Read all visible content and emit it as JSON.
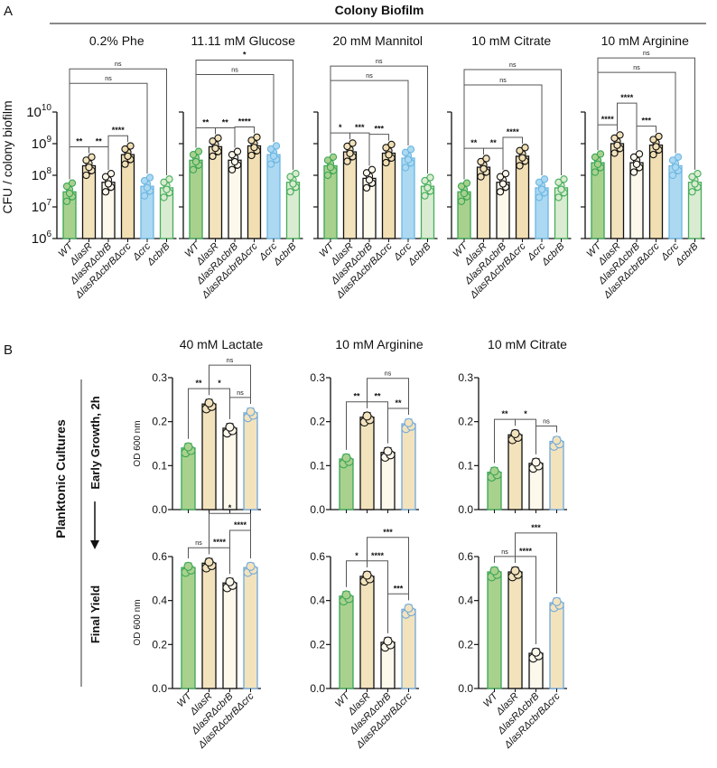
{
  "figure": {
    "panel_a_letter": "A",
    "panel_b_letter": "B",
    "colony_header": "Colony Biofilm",
    "planktonic_label": "Planktonic Cultures",
    "early_label": "Early Growth, 2h",
    "final_label": "Final Yield"
  },
  "colors": {
    "WT": {
      "fill": "#a9d18e",
      "stroke": "#3aa655"
    },
    "lasR": {
      "fill": "#f3e3bd",
      "stroke": "#111111"
    },
    "lasRcbrB": {
      "fill": "#fdf8ec",
      "stroke": "#111111"
    },
    "lasRcbrBcrc": {
      "fill": "#f1dfb3",
      "stroke": "#111111"
    },
    "crc": {
      "fill": "#acd9f1",
      "stroke": "#6db7e3"
    },
    "cbrB": {
      "fill": "#d9ecd1",
      "stroke": "#45ad5a"
    },
    "lasRcbrBcrc_B": {
      "fill": "#f3e3bd",
      "stroke": "#6fa8dc"
    }
  },
  "chart_data": [
    {
      "type": "bar",
      "panel": "A",
      "title": "0.2% Phe",
      "ylabel": "CFU / colony biofilm",
      "yscale": "log",
      "ylim": [
        1000000.0,
        10000000000.0
      ],
      "yticks": [
        "10^6",
        "10^7",
        "10^8",
        "10^9",
        "10^10"
      ],
      "categories": [
        "WT",
        "ΔlasR",
        "ΔlasRΔcbrB",
        "ΔlasRΔcbrBΔcrc",
        "Δcrc",
        "ΔcbrB"
      ],
      "keys": [
        "WT",
        "lasR",
        "lasRcbrB",
        "lasRcbrBcrc",
        "crc",
        "cbrB"
      ],
      "values": [
        30000000.0,
        200000000.0,
        60000000.0,
        450000000.0,
        45000000.0,
        40000000.0
      ],
      "significance": [
        [
          0,
          1,
          "**"
        ],
        [
          1,
          2,
          "**"
        ],
        [
          2,
          3,
          "****"
        ],
        [
          0,
          4,
          "ns"
        ],
        [
          0,
          5,
          "ns"
        ]
      ]
    },
    {
      "type": "bar",
      "panel": "A",
      "title": "11.11 mM Glucose",
      "yscale": "log",
      "ylim": [
        1000000.0,
        10000000000.0
      ],
      "categories": [
        "WT",
        "ΔlasR",
        "ΔlasRΔcbrB",
        "ΔlasRΔcbrBΔcrc",
        "Δcrc",
        "ΔcbrB"
      ],
      "keys": [
        "WT",
        "lasR",
        "lasRcbrB",
        "lasRcbrBcrc",
        "crc",
        "cbrB"
      ],
      "values": [
        300000000.0,
        800000000.0,
        300000000.0,
        850000000.0,
        450000000.0,
        60000000.0
      ],
      "significance": [
        [
          0,
          1,
          "**"
        ],
        [
          1,
          2,
          "**"
        ],
        [
          2,
          3,
          "****"
        ],
        [
          0,
          4,
          "ns"
        ],
        [
          0,
          5,
          "*"
        ]
      ]
    },
    {
      "type": "bar",
      "panel": "A",
      "title": "20 mM Mannitol",
      "yscale": "log",
      "ylim": [
        1000000.0,
        10000000000.0
      ],
      "categories": [
        "WT",
        "ΔlasR",
        "ΔlasRΔcbrB",
        "ΔlasRΔcbrBΔcrc",
        "Δcrc",
        "ΔcbrB"
      ],
      "keys": [
        "WT",
        "lasR",
        "lasRcbrB",
        "lasRcbrBcrc",
        "crc",
        "cbrB"
      ],
      "values": [
        200000000.0,
        550000000.0,
        80000000.0,
        500000000.0,
        350000000.0,
        45000000.0
      ],
      "significance": [
        [
          0,
          1,
          "*"
        ],
        [
          1,
          2,
          "***"
        ],
        [
          2,
          3,
          "***"
        ],
        [
          0,
          4,
          "ns"
        ],
        [
          0,
          5,
          "ns"
        ]
      ]
    },
    {
      "type": "bar",
      "panel": "A",
      "title": "10 mM Citrate",
      "yscale": "log",
      "ylim": [
        1000000.0,
        10000000000.0
      ],
      "categories": [
        "WT",
        "ΔlasR",
        "ΔlasRΔcbrB",
        "ΔlasRΔcbrBΔcrc",
        "Δcrc",
        "ΔcbrB"
      ],
      "keys": [
        "WT",
        "lasR",
        "lasRcbrB",
        "lasRcbrBcrc",
        "crc",
        "cbrB"
      ],
      "values": [
        30000000.0,
        180000000.0,
        60000000.0,
        400000000.0,
        40000000.0,
        40000000.0
      ],
      "significance": [
        [
          0,
          1,
          "**"
        ],
        [
          1,
          2,
          "**"
        ],
        [
          2,
          3,
          "****"
        ],
        [
          0,
          4,
          "ns"
        ],
        [
          0,
          5,
          "ns"
        ]
      ]
    },
    {
      "type": "bar",
      "panel": "A",
      "title": "10 mM Arginine",
      "yscale": "log",
      "ylim": [
        1000000.0,
        10000000000.0
      ],
      "categories": [
        "WT",
        "ΔlasR",
        "ΔlasRΔcbrB",
        "ΔlasRΔcbrBΔcrc",
        "Δcrc",
        "ΔcbrB"
      ],
      "keys": [
        "WT",
        "lasR",
        "lasRcbrB",
        "lasRcbrBcrc",
        "crc",
        "cbrB"
      ],
      "values": [
        250000000.0,
        1000000000.0,
        250000000.0,
        900000000.0,
        200000000.0,
        60000000.0
      ],
      "significance": [
        [
          0,
          1,
          "****"
        ],
        [
          1,
          2,
          "****"
        ],
        [
          2,
          3,
          "***"
        ],
        [
          0,
          4,
          "ns"
        ],
        [
          0,
          5,
          "ns"
        ]
      ]
    },
    {
      "type": "bar",
      "panel": "B-early",
      "title": "40 mM Lactate",
      "ylabel": "OD 600 nm",
      "ylim": [
        0,
        0.3
      ],
      "yticks": [
        "0.0",
        "0.1",
        "0.2",
        "0.3"
      ],
      "keys": [
        "WT",
        "lasR",
        "lasRcbrB",
        "lasRcbrBcrc_B"
      ],
      "values": [
        0.14,
        0.24,
        0.185,
        0.22
      ],
      "significance": [
        [
          0,
          1,
          "**"
        ],
        [
          1,
          2,
          "*"
        ],
        [
          2,
          3,
          "ns"
        ],
        [
          1,
          3,
          "ns"
        ]
      ]
    },
    {
      "type": "bar",
      "panel": "B-early",
      "title": "10 mM Arginine",
      "ylim": [
        0,
        0.3
      ],
      "yticks": [
        "0.0",
        "0.1",
        "0.2",
        "0.3"
      ],
      "keys": [
        "WT",
        "lasR",
        "lasRcbrB",
        "lasRcbrBcrc_B"
      ],
      "values": [
        0.115,
        0.21,
        0.13,
        0.195
      ],
      "significance": [
        [
          0,
          1,
          "**"
        ],
        [
          1,
          2,
          "**"
        ],
        [
          2,
          3,
          "**"
        ],
        [
          1,
          3,
          "ns"
        ]
      ]
    },
    {
      "type": "bar",
      "panel": "B-early",
      "title": "10 mM Citrate",
      "ylim": [
        0,
        0.3
      ],
      "yticks": [
        "0.0",
        "0.1",
        "0.2",
        "0.3"
      ],
      "keys": [
        "WT",
        "lasR",
        "lasRcbrB",
        "lasRcbrBcrc_B"
      ],
      "values": [
        0.085,
        0.17,
        0.105,
        0.155
      ],
      "significance": [
        [
          0,
          1,
          "**"
        ],
        [
          1,
          2,
          "*"
        ],
        [
          2,
          3,
          "ns"
        ]
      ]
    },
    {
      "type": "bar",
      "panel": "B-final",
      "ylabel": "OD 600 nm",
      "ylim": [
        0,
        0.6
      ],
      "yticks": [
        "0.0",
        "0.2",
        "0.4",
        "0.6"
      ],
      "categories": [
        "WT",
        "ΔlasR",
        "ΔlasRΔcbrB",
        "ΔlasRΔcbrBΔcrc"
      ],
      "keys": [
        "WT",
        "lasR",
        "lasRcbrB",
        "lasRcbrBcrc_B"
      ],
      "values": [
        0.55,
        0.57,
        0.48,
        0.55
      ],
      "significance": [
        [
          0,
          1,
          "ns"
        ],
        [
          1,
          2,
          "****"
        ],
        [
          2,
          3,
          "****"
        ],
        [
          1,
          3,
          "*"
        ]
      ]
    },
    {
      "type": "bar",
      "panel": "B-final",
      "ylim": [
        0,
        0.6
      ],
      "yticks": [
        "0.0",
        "0.2",
        "0.4",
        "0.6"
      ],
      "categories": [
        "WT",
        "ΔlasR",
        "ΔlasRΔcbrB",
        "ΔlasRΔcbrBΔcrc"
      ],
      "keys": [
        "WT",
        "lasR",
        "lasRcbrB",
        "lasRcbrBcrc_B"
      ],
      "values": [
        0.42,
        0.51,
        0.21,
        0.36
      ],
      "significance": [
        [
          0,
          1,
          "*"
        ],
        [
          1,
          2,
          "****"
        ],
        [
          2,
          3,
          "***"
        ],
        [
          1,
          3,
          "***"
        ]
      ]
    },
    {
      "type": "bar",
      "panel": "B-final",
      "ylim": [
        0,
        0.6
      ],
      "yticks": [
        "0.0",
        "0.2",
        "0.4",
        "0.6"
      ],
      "categories": [
        "WT",
        "ΔlasR",
        "ΔlasRΔcbrB",
        "ΔlasRΔcbrBΔcrc"
      ],
      "keys": [
        "WT",
        "lasR",
        "lasRcbrB",
        "lasRcbrBcrc_B"
      ],
      "values": [
        0.53,
        0.53,
        0.16,
        0.39
      ],
      "significance": [
        [
          0,
          1,
          "ns"
        ],
        [
          1,
          2,
          "****"
        ],
        [
          1,
          3,
          "***"
        ]
      ]
    }
  ]
}
